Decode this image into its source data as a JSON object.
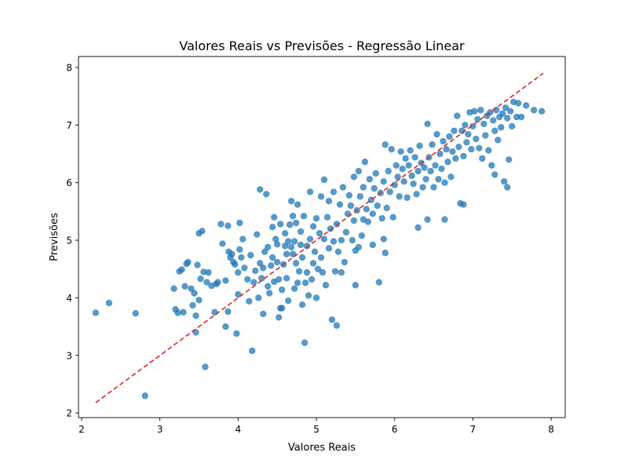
{
  "chart_data": {
    "type": "scatter",
    "title": "Valores Reais vs Previsões - Regressão Linear",
    "xlabel": "Valores Reais",
    "ylabel": "Previsões",
    "xlim": [
      1.96,
      8.18
    ],
    "ylim": [
      1.92,
      8.19
    ],
    "xticks": [
      "2",
      "3",
      "4",
      "5",
      "6",
      "7",
      "8"
    ],
    "yticks": [
      "2",
      "3",
      "4",
      "5",
      "6",
      "7",
      "8"
    ],
    "grid": false,
    "colors": {
      "points": "#1f77b4",
      "reference_line": "#d62728"
    },
    "reference_line": {
      "x": [
        2.18,
        7.9
      ],
      "y": [
        2.18,
        7.9
      ],
      "style": "dashed"
    },
    "series": [
      {
        "points": [
          [
            2.18,
            3.74
          ],
          [
            2.35,
            3.91
          ],
          [
            2.69,
            3.73
          ],
          [
            2.81,
            2.3
          ],
          [
            3.18,
            4.16
          ],
          [
            3.2,
            3.8
          ],
          [
            3.23,
            3.74
          ],
          [
            3.25,
            4.46
          ],
          [
            3.28,
            4.49
          ],
          [
            3.3,
            3.75
          ],
          [
            3.32,
            4.2
          ],
          [
            3.34,
            4.59
          ],
          [
            3.36,
            4.62
          ],
          [
            3.4,
            4.16
          ],
          [
            3.42,
            3.87
          ],
          [
            3.44,
            4.08
          ],
          [
            3.46,
            3.69
          ],
          [
            3.46,
            3.4
          ],
          [
            3.48,
            4.57
          ],
          [
            3.5,
            5.12
          ],
          [
            3.5,
            3.96
          ],
          [
            3.52,
            4.33
          ],
          [
            3.54,
            5.16
          ],
          [
            3.56,
            4.45
          ],
          [
            3.58,
            2.8
          ],
          [
            3.6,
            4.27
          ],
          [
            3.62,
            4.44
          ],
          [
            3.66,
            4.21
          ],
          [
            3.7,
            3.75
          ],
          [
            3.72,
            4.24
          ],
          [
            3.74,
            4.27
          ],
          [
            3.78,
            5.28
          ],
          [
            3.8,
            4.94
          ],
          [
            3.84,
            3.5
          ],
          [
            3.84,
            4.3
          ],
          [
            3.87,
            3.76
          ],
          [
            3.87,
            5.25
          ],
          [
            3.88,
            4.8
          ],
          [
            3.9,
            4.7
          ],
          [
            3.92,
            4.76
          ],
          [
            3.94,
            4.62
          ],
          [
            3.96,
            4.58
          ],
          [
            3.98,
            3.38
          ],
          [
            4.0,
            4.44
          ],
          [
            4.0,
            4.06
          ],
          [
            4.02,
            4.84
          ],
          [
            4.02,
            5.3
          ],
          [
            4.04,
            4.7
          ],
          [
            4.06,
            5.02
          ],
          [
            4.08,
            4.52
          ],
          [
            4.12,
            4.32
          ],
          [
            4.14,
            3.94
          ],
          [
            4.16,
            4.74
          ],
          [
            4.18,
            3.08
          ],
          [
            4.2,
            4.27
          ],
          [
            4.22,
            4.47
          ],
          [
            4.24,
            5.1
          ],
          [
            4.26,
            4.0
          ],
          [
            4.28,
            4.6
          ],
          [
            4.28,
            5.88
          ],
          [
            4.3,
            4.34
          ],
          [
            4.32,
            4.52
          ],
          [
            4.32,
            3.72
          ],
          [
            4.34,
            4.8
          ],
          [
            4.36,
            5.8
          ],
          [
            4.38,
            4.2
          ],
          [
            4.38,
            4.88
          ],
          [
            4.4,
            4.08
          ],
          [
            4.42,
            4.56
          ],
          [
            4.44,
            4.7
          ],
          [
            4.44,
            5.23
          ],
          [
            4.46,
            4.28
          ],
          [
            4.46,
            5.4
          ],
          [
            4.48,
            5.02
          ],
          [
            4.5,
            4.62
          ],
          [
            4.5,
            4.93
          ],
          [
            4.52,
            4.32
          ],
          [
            4.52,
            3.66
          ],
          [
            4.54,
            3.82
          ],
          [
            4.54,
            5.28
          ],
          [
            4.56,
            3.82
          ],
          [
            4.56,
            4.14
          ],
          [
            4.58,
            4.58
          ],
          [
            4.6,
            4.9
          ],
          [
            4.6,
            5.12
          ],
          [
            4.62,
            4.34
          ],
          [
            4.62,
            4.76
          ],
          [
            4.64,
            3.95
          ],
          [
            4.64,
            4.98
          ],
          [
            4.66,
            5.27
          ],
          [
            4.68,
            4.88
          ],
          [
            4.68,
            5.68
          ],
          [
            4.7,
            4.76
          ],
          [
            4.7,
            5.42
          ],
          [
            4.72,
            4.16
          ],
          [
            4.72,
            4.98
          ],
          [
            4.74,
            4.6
          ],
          [
            4.74,
            5.3
          ],
          [
            4.76,
            4.26
          ],
          [
            4.76,
            5.62
          ],
          [
            4.78,
            4.46
          ],
          [
            4.8,
            4.92
          ],
          [
            4.8,
            5.15
          ],
          [
            4.82,
            3.88
          ],
          [
            4.82,
            4.7
          ],
          [
            4.84,
            5.42
          ],
          [
            4.85,
            3.22
          ],
          [
            4.86,
            4.26
          ],
          [
            4.88,
            4.44
          ],
          [
            4.88,
            4.9
          ],
          [
            4.9,
            4.04
          ],
          [
            4.92,
            5.02
          ],
          [
            4.92,
            5.84
          ],
          [
            4.94,
            4.32
          ],
          [
            4.96,
            4.6
          ],
          [
            4.96,
            5.24
          ],
          [
            4.98,
            4.8
          ],
          [
            5.0,
            4.0
          ],
          [
            5.0,
            5.38
          ],
          [
            5.02,
            4.5
          ],
          [
            5.04,
            5.12
          ],
          [
            5.06,
            4.7
          ],
          [
            5.06,
            5.76
          ],
          [
            5.08,
            4.44
          ],
          [
            5.1,
            5.02
          ],
          [
            5.1,
            6.05
          ],
          [
            5.12,
            4.22
          ],
          [
            5.14,
            5.4
          ],
          [
            5.16,
            4.86
          ],
          [
            5.16,
            5.68
          ],
          [
            5.18,
            5.2
          ],
          [
            5.2,
            3.62
          ],
          [
            5.22,
            4.98
          ],
          [
            5.22,
            5.84
          ],
          [
            5.24,
            4.46
          ],
          [
            5.26,
            3.52
          ],
          [
            5.26,
            5.28
          ],
          [
            5.28,
            4.8
          ],
          [
            5.3,
            5.62
          ],
          [
            5.32,
            4.44
          ],
          [
            5.32,
            5.0
          ],
          [
            5.34,
            5.92
          ],
          [
            5.36,
            4.62
          ],
          [
            5.38,
            5.14
          ],
          [
            5.4,
            5.46
          ],
          [
            5.42,
            5.78
          ],
          [
            5.44,
            5.6
          ],
          [
            5.46,
            5.0
          ],
          [
            5.48,
            5.34
          ],
          [
            5.48,
            6.1
          ],
          [
            5.5,
            4.22
          ],
          [
            5.5,
            4.82
          ],
          [
            5.52,
            5.52
          ],
          [
            5.54,
            4.88
          ],
          [
            5.54,
            6.2
          ],
          [
            5.56,
            5.76
          ],
          [
            5.58,
            5.08
          ],
          [
            5.6,
            5.36
          ],
          [
            5.6,
            5.92
          ],
          [
            5.62,
            6.36
          ],
          [
            5.64,
            5.54
          ],
          [
            5.66,
            5.32
          ],
          [
            5.68,
            6.06
          ],
          [
            5.7,
            5.7
          ],
          [
            5.72,
            5.46
          ],
          [
            5.72,
            4.92
          ],
          [
            5.74,
            5.9
          ],
          [
            5.76,
            6.16
          ],
          [
            5.78,
            5.6
          ],
          [
            5.8,
            4.27
          ],
          [
            5.82,
            5.82
          ],
          [
            5.84,
            5.38
          ],
          [
            5.86,
            5.02
          ],
          [
            5.86,
            6.02
          ],
          [
            5.88,
            4.78
          ],
          [
            5.88,
            6.66
          ],
          [
            5.9,
            5.56
          ],
          [
            5.92,
            6.2
          ],
          [
            5.94,
            5.84
          ],
          [
            5.96,
            6.58
          ],
          [
            5.98,
            5.4
          ],
          [
            6.0,
            5.96
          ],
          [
            6.02,
            6.3
          ],
          [
            6.04,
            6.1
          ],
          [
            6.06,
            5.76
          ],
          [
            6.08,
            6.54
          ],
          [
            6.1,
            6.24
          ],
          [
            6.12,
            6.02
          ],
          [
            6.14,
            6.42
          ],
          [
            6.16,
            5.74
          ],
          [
            6.18,
            6.3
          ],
          [
            6.2,
            6.56
          ],
          [
            6.22,
            6.12
          ],
          [
            6.24,
            5.98
          ],
          [
            6.26,
            6.44
          ],
          [
            6.28,
            5.8
          ],
          [
            6.3,
            5.22
          ],
          [
            6.3,
            6.2
          ],
          [
            6.32,
            6.64
          ],
          [
            6.34,
            6.34
          ],
          [
            6.36,
            5.92
          ],
          [
            6.38,
            6.26
          ],
          [
            6.4,
            6.06
          ],
          [
            6.42,
            5.36
          ],
          [
            6.42,
            7.02
          ],
          [
            6.44,
            6.44
          ],
          [
            6.46,
            6.2
          ],
          [
            6.48,
            6.66
          ],
          [
            6.5,
            5.92
          ],
          [
            6.52,
            6.3
          ],
          [
            6.54,
            6.84
          ],
          [
            6.56,
            6.06
          ],
          [
            6.58,
            6.5
          ],
          [
            6.6,
            6.24
          ],
          [
            6.62,
            6.72
          ],
          [
            6.64,
            5.36
          ],
          [
            6.64,
            6.0
          ],
          [
            6.66,
            6.58
          ],
          [
            6.68,
            6.36
          ],
          [
            6.7,
            6.8
          ],
          [
            6.72,
            6.1
          ],
          [
            6.74,
            6.54
          ],
          [
            6.76,
            6.9
          ],
          [
            6.78,
            6.42
          ],
          [
            6.8,
            7.16
          ],
          [
            6.82,
            6.62
          ],
          [
            6.84,
            5.64
          ],
          [
            6.86,
            6.9
          ],
          [
            6.88,
            5.62
          ],
          [
            6.88,
            6.46
          ],
          [
            6.9,
            7.0
          ],
          [
            6.92,
            6.7
          ],
          [
            6.94,
            6.84
          ],
          [
            6.96,
            7.22
          ],
          [
            6.98,
            6.58
          ],
          [
            7.0,
            6.98
          ],
          [
            7.02,
            7.24
          ],
          [
            7.04,
            6.76
          ],
          [
            7.06,
            7.1
          ],
          [
            7.08,
            6.6
          ],
          [
            7.1,
            7.26
          ],
          [
            7.12,
            6.42
          ],
          [
            7.14,
            7.02
          ],
          [
            7.16,
            6.82
          ],
          [
            7.18,
            7.16
          ],
          [
            7.2,
            6.56
          ],
          [
            7.22,
            7.22
          ],
          [
            7.24,
            6.3
          ],
          [
            7.26,
            7.08
          ],
          [
            7.28,
            6.9
          ],
          [
            7.28,
            6.14
          ],
          [
            7.3,
            7.26
          ],
          [
            7.32,
            6.74
          ],
          [
            7.34,
            7.14
          ],
          [
            7.36,
            6.96
          ],
          [
            7.38,
            7.2
          ],
          [
            7.4,
            6.02
          ],
          [
            7.42,
            7.3
          ],
          [
            7.44,
            5.92
          ],
          [
            7.44,
            7.12
          ],
          [
            7.46,
            6.4
          ],
          [
            7.48,
            7.24
          ],
          [
            7.5,
            6.98
          ],
          [
            7.52,
            7.4
          ],
          [
            7.56,
            7.14
          ],
          [
            7.58,
            7.38
          ],
          [
            7.62,
            7.14
          ],
          [
            7.68,
            7.34
          ],
          [
            7.78,
            7.26
          ],
          [
            7.88,
            7.24
          ]
        ]
      }
    ]
  }
}
